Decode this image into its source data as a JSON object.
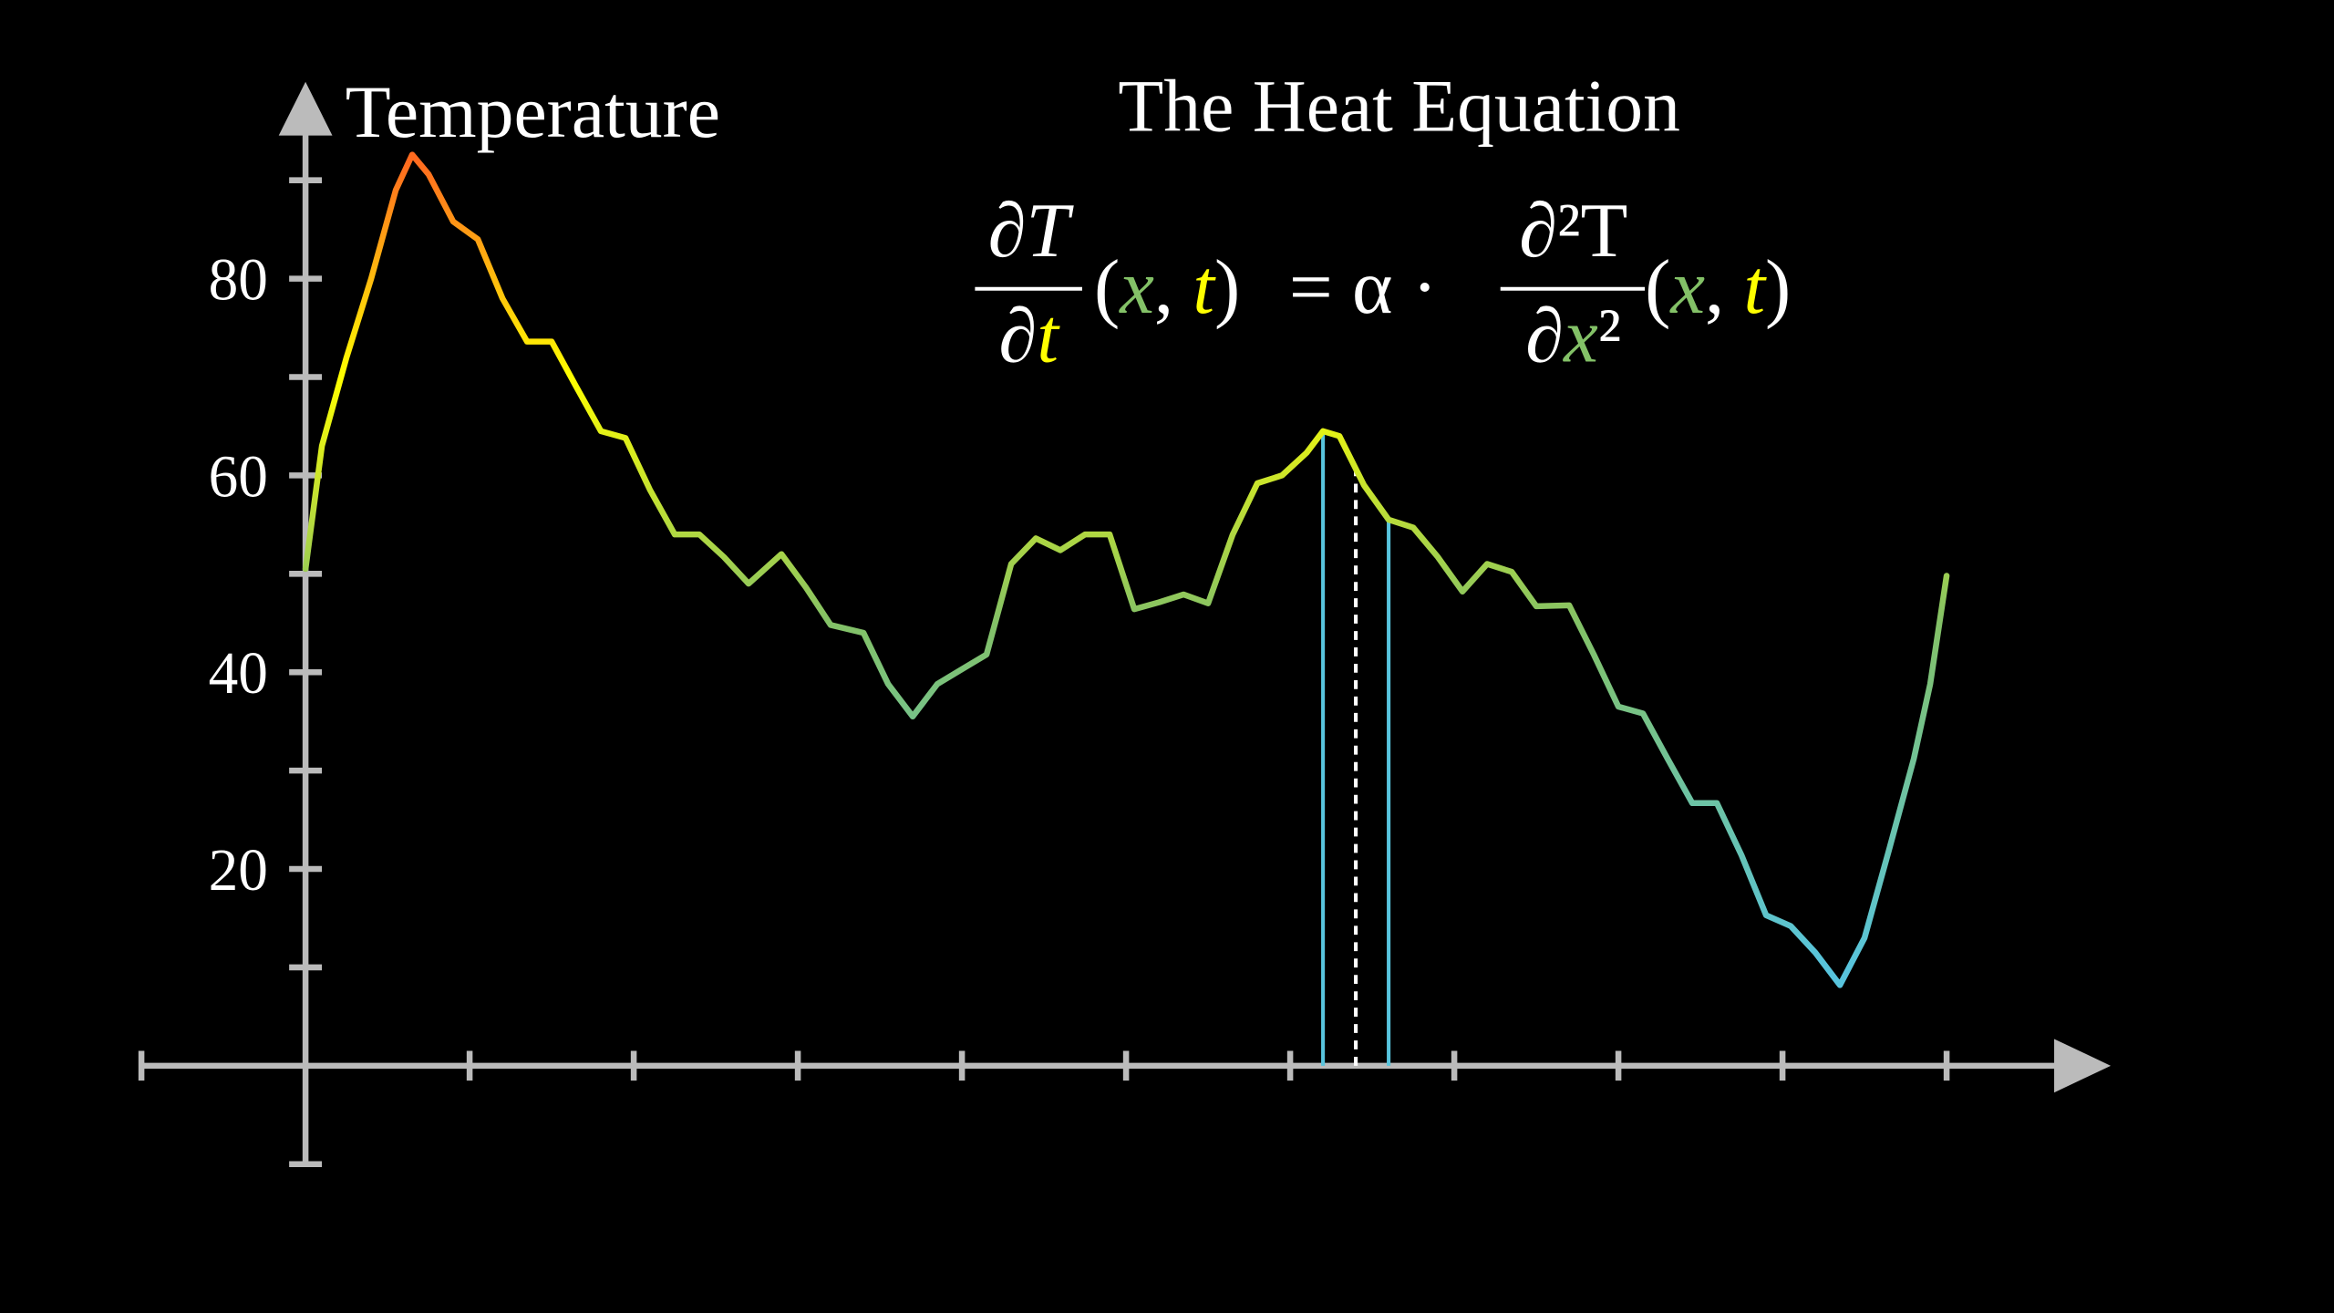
{
  "chart_data": {
    "type": "line",
    "title": "The Heat Equation",
    "y_label": "Temperature",
    "equation": {
      "lhs_num": "∂T",
      "lhs_den": [
        "∂",
        "t"
      ],
      "args": [
        "(",
        "x",
        ", ",
        "t",
        ")"
      ],
      "mid": "= α ·",
      "rhs_num": "∂²T",
      "rhs_den": [
        "∂",
        "x",
        "²"
      ]
    },
    "x": [
      0,
      0.1,
      0.25,
      0.4,
      0.55,
      0.65,
      0.75,
      0.9,
      1.05,
      1.2,
      1.35,
      1.5,
      1.65,
      1.8,
      1.95,
      2.1,
      2.25,
      2.4,
      2.55,
      2.7,
      2.9,
      3.05,
      3.2,
      3.4,
      3.55,
      3.7,
      3.85,
      4.0,
      4.15,
      4.3,
      4.45,
      4.6,
      4.75,
      4.9,
      5.05,
      5.2,
      5.35,
      5.5,
      5.65,
      5.8,
      5.95,
      6.1,
      6.2,
      6.3,
      6.45,
      6.6,
      6.75,
      6.9,
      7.05,
      7.2,
      7.35,
      7.5,
      7.7,
      7.85,
      8.0,
      8.15,
      8.3,
      8.45,
      8.6,
      8.75,
      8.9,
      9.05,
      9.2,
      9.35,
      9.5,
      9.65,
      9.8,
      9.9,
      10
    ],
    "values": [
      50.5,
      63,
      72,
      80,
      89,
      92.6,
      90.6,
      85.8,
      84,
      78,
      73.6,
      73.6,
      69,
      64.5,
      63.8,
      58.5,
      54,
      54,
      51.7,
      49,
      52,
      48.6,
      44.8,
      44,
      38.8,
      35.5,
      38.8,
      40.3,
      41.8,
      51,
      53.6,
      52.4,
      54,
      54,
      46.4,
      47.1,
      47.9,
      47,
      54,
      59.2,
      60,
      62.3,
      64.5,
      64,
      59,
      55.5,
      54.7,
      51.7,
      48.2,
      51,
      50.2,
      46.7,
      46.8,
      41.8,
      36.5,
      35.8,
      31.2,
      26.7,
      26.7,
      21.4,
      15.3,
      14.2,
      11.5,
      8.2,
      13,
      22,
      31.2,
      38.8,
      49.8
    ],
    "color_stops": [
      {
        "value": 10,
        "color": "#58c4dd"
      },
      {
        "value": 45,
        "color": "#83c167"
      },
      {
        "value": 70,
        "color": "#ffff00"
      },
      {
        "value": 92,
        "color": "#ff6a1f"
      }
    ],
    "highlight_lines": [
      {
        "x": 6.2,
        "color": "#58c4dd",
        "style": "solid"
      },
      {
        "x": 6.4,
        "color": "#ffffff",
        "style": "dashed"
      },
      {
        "x": 6.6,
        "color": "#58c4dd",
        "style": "solid"
      }
    ],
    "xlim": [
      -1,
      11
    ],
    "ylim": [
      -10,
      100
    ],
    "xticks": [
      -1,
      1,
      2,
      3,
      4,
      5,
      6,
      7,
      8,
      9,
      10
    ],
    "yticks": [
      20,
      40,
      60,
      80
    ],
    "yminorticks": [
      -10,
      10,
      30,
      50,
      70,
      90
    ],
    "axis_color": "#bbbbbb",
    "x_color": "#83c167",
    "t_color": "#ffff00"
  }
}
